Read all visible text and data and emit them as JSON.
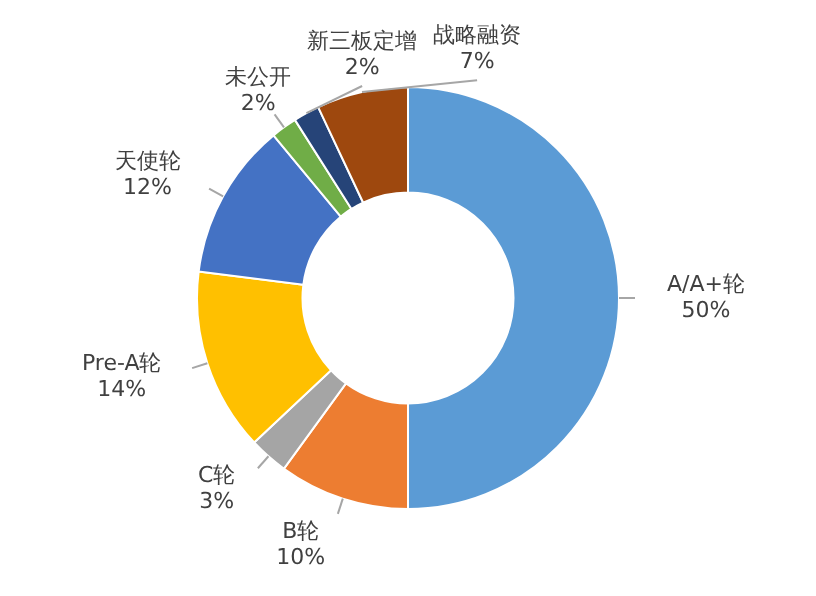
{
  "chart_data": {
    "type": "donut",
    "categories": [
      "A/A+轮",
      "B轮",
      "C轮",
      "Pre-A轮",
      "天使轮",
      "未公开",
      "新三板定增",
      "战略融资"
    ],
    "values": [
      50,
      10,
      3,
      14,
      12,
      2,
      2,
      7
    ],
    "value_labels": [
      "50%",
      "10%",
      "3%",
      "14%",
      "12%",
      "2%",
      "2%",
      "7%"
    ],
    "colors": [
      "#5b9bd5",
      "#ed7d31",
      "#a5a5a5",
      "#ffc000",
      "#4472c4",
      "#70ad47",
      "#264478",
      "#9e480e"
    ],
    "legend": false
  }
}
